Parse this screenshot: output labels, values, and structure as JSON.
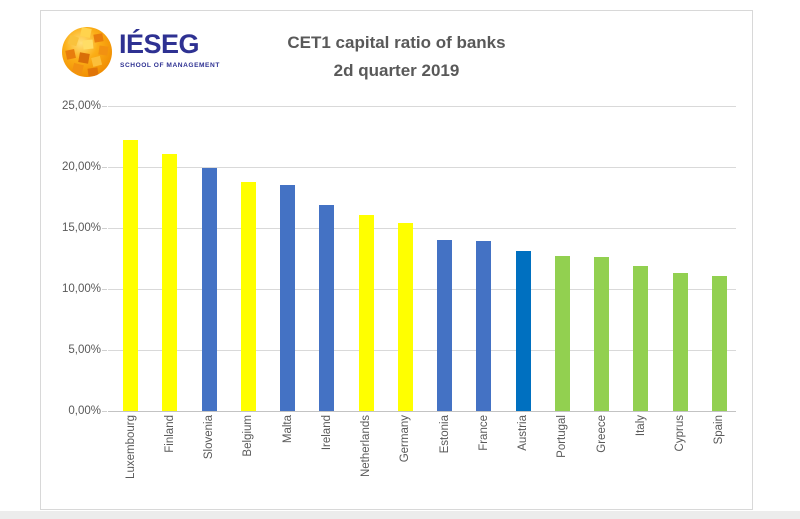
{
  "logo": {
    "brand": "IÉSEG",
    "tagline": "SCHOOL OF MANAGEMENT"
  },
  "title": {
    "line1": "CET1 capital ratio of banks",
    "line2": "2d quarter 2019"
  },
  "chart_data": {
    "type": "bar",
    "title": "CET1 capital ratio of banks",
    "subtitle": "2d quarter 2019",
    "categories": [
      "Luxembourg",
      "Finland",
      "Slovenia",
      "Belgium",
      "Malta",
      "Ireland",
      "Netherlands",
      "Germany",
      "Estonia",
      "France",
      "Austria",
      "Portugal",
      "Greece",
      "Italy",
      "Cyprus",
      "Spain"
    ],
    "values": [
      22.2,
      21.1,
      19.9,
      18.8,
      18.5,
      16.9,
      16.1,
      15.4,
      14.0,
      13.9,
      13.1,
      12.7,
      12.6,
      11.9,
      11.3,
      11.1
    ],
    "bar_colors": [
      "#ffff00",
      "#ffff00",
      "#4472c4",
      "#ffff00",
      "#4472c4",
      "#4472c4",
      "#ffff00",
      "#ffff00",
      "#4472c4",
      "#4472c4",
      "#0070c0",
      "#92d050",
      "#92d050",
      "#92d050",
      "#92d050",
      "#92d050"
    ],
    "xlabel": "",
    "ylabel": "",
    "ylim": [
      0,
      25
    ],
    "ytick_step": 5,
    "ytick_labels": [
      "0,00%",
      "5,00%",
      "10,00%",
      "15,00%",
      "20,00%",
      "25,00%"
    ],
    "grid": true,
    "legend": false,
    "colors": {
      "yellow": "#ffff00",
      "blue": "#4472c4",
      "dark_blue": "#0070c0",
      "green": "#92d050",
      "title_text": "#595959",
      "axis_text": "#595959",
      "gridline": "#d9d9d9",
      "axis_line": "#c3c3c3",
      "brand_navy": "#2e3192",
      "brand_orange": "#f7941e"
    }
  }
}
